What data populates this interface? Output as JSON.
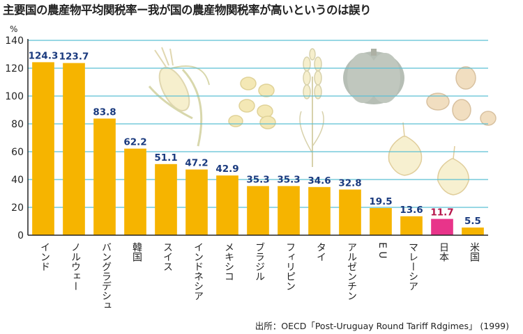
{
  "title": "主要国の農産物平均関税率ー我が国の農産物関税率が高いというのは誤り",
  "source": "出所：OECD「Post-Uruguay Round Tariff Rdgimes」 (1999)",
  "colors": {
    "bar": "#f6b400",
    "highlight_bar": "#e8348a",
    "value_label": "#1a3a7e",
    "highlight_value_label": "#b5154a",
    "gridline": "#5bbfd4",
    "axis": "#222222"
  },
  "decorations": [
    "corn-illustration",
    "soybeans-illustration",
    "wheat-illustration",
    "pumpkin-illustration",
    "onion-illustration",
    "potatoes-illustration"
  ],
  "chart_data": {
    "type": "bar",
    "title": "主要国の農産物平均関税率ー我が国の農産物関税率が高いというのは誤り",
    "ylabel": "%",
    "xlabel": "",
    "ylim": [
      0,
      140
    ],
    "yticks": [
      0,
      20,
      40,
      60,
      80,
      100,
      120,
      140
    ],
    "grid": true,
    "highlight_category": "日本",
    "categories": [
      "インド",
      "ノルウェー",
      "バングラデシュ",
      "韓国",
      "スイス",
      "インドネシア",
      "メキシコ",
      "ブラジル",
      "フィリピン",
      "タイ",
      "アルゼンチン",
      "E U",
      "マレーシア",
      "日本",
      "米国"
    ],
    "values": [
      124.3,
      123.7,
      83.8,
      62.2,
      51.1,
      47.2,
      42.9,
      35.3,
      35.3,
      34.6,
      32.8,
      19.5,
      13.6,
      11.7,
      5.5
    ],
    "value_labels": [
      "124.3",
      "123.7",
      "83.8",
      "62.2",
      "51.1",
      "47.2",
      "42.9",
      "35.3",
      "35.3",
      "34.6",
      "32.8",
      "19.5",
      "13.6",
      "11.7",
      "5.5"
    ]
  }
}
